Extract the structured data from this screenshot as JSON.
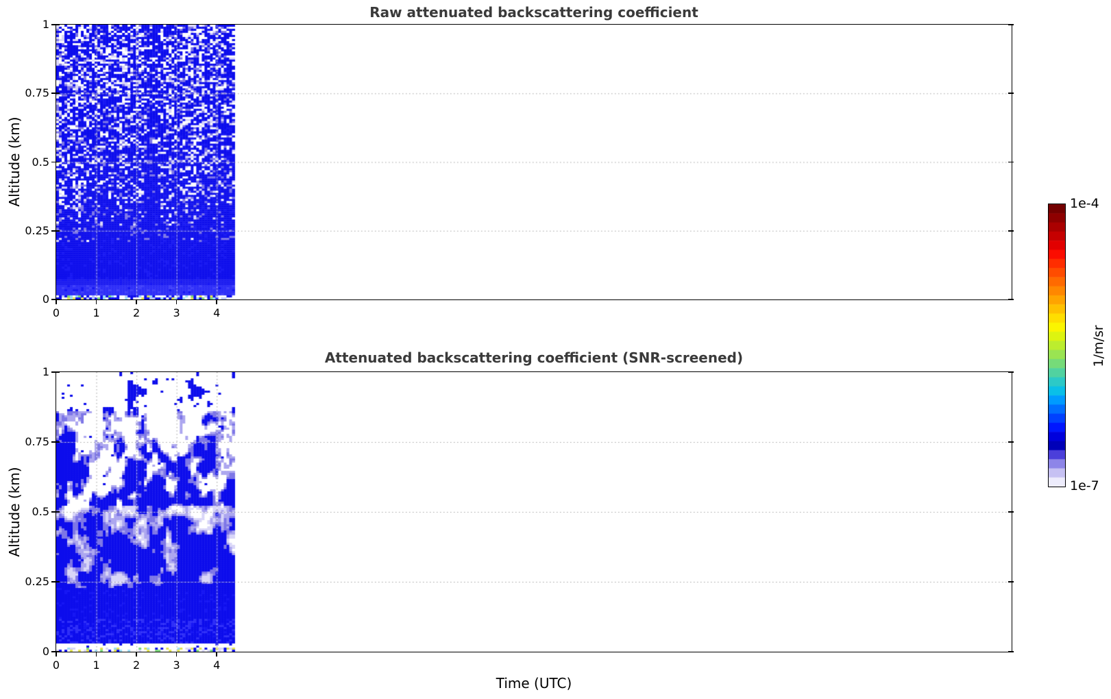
{
  "figure": {
    "xlabel": "Time (UTC)",
    "background": "#ffffff",
    "title_color": "#3a3a3a"
  },
  "colorbar": {
    "top_label": "1e-4",
    "bottom_label": "1e-7",
    "unit": "1/m/sr",
    "scale": "log",
    "vmin": 1e-07,
    "vmax": 0.0001,
    "stops_top_to_bottom": [
      "#730000",
      "#8e0000",
      "#aa0000",
      "#c60000",
      "#e20000",
      "#fb0d00",
      "#ff2d00",
      "#ff4c00",
      "#ff6a00",
      "#ff8700",
      "#ffa400",
      "#ffc100",
      "#ffde00",
      "#fbf500",
      "#ddf410",
      "#bced2e",
      "#9ae452",
      "#76db79",
      "#51d2a0",
      "#2cc9c7",
      "#0abfe8",
      "#009bff",
      "#006eff",
      "#0041ff",
      "#0016ff",
      "#0000dd",
      "#0000b8",
      "#4b3fda",
      "#8d85e8",
      "#c6c1f3",
      "#edecfc"
    ]
  },
  "palette": {
    "blue": "#0c0cec",
    "blue2": "#1616f4",
    "blue_light": "#2e2ef8",
    "blue_band": "#1d1df0",
    "med_blue": "#7d76e6",
    "lavender": "#aca6ef",
    "pale": "#d9d6f8",
    "pale_blue": "#b9c6f9",
    "white": "#ffffff",
    "cyan": "#9adcf8",
    "yellow": "#e2e24e",
    "green": "#7ad878"
  },
  "chart_data": [
    {
      "panel": "top",
      "type": "heatmap",
      "title": "Raw attenuated backscattering coefficient",
      "ylabel": "Altitude (km)",
      "units": "1/m/sr",
      "x_ticks": [
        0,
        1,
        2,
        3,
        4
      ],
      "x_tick_labels": [
        "0",
        "1",
        "2",
        "3",
        "4"
      ],
      "y_ticks": [
        1,
        0.75,
        0.5,
        0.25,
        0
      ],
      "y_tick_labels": [
        "1",
        "0.75",
        "0.5",
        "0.25",
        "0"
      ],
      "xlim_hours": [
        0,
        23.8
      ],
      "ylim_km": [
        0,
        1
      ],
      "data_time_extent_hours": [
        0,
        4.45
      ],
      "grid": true,
      "seed": 7,
      "description": "Raw signal: solid strong blue backscatter below ~0.22 km, bright speckled surface line at 0 km, noise-dominated blue/white speckle above ~0.35 km with denser vertical plume streaks near 2.3-2.6 UTC; no data after ~4.45 UTC.",
      "profile_typical_beta_att": [
        {
          "alt_km": [
            0,
            0.05
          ],
          "value": 3e-06
        },
        {
          "alt_km": [
            0.05,
            0.25
          ],
          "value": 1.5e-06
        },
        {
          "alt_km": [
            0.25,
            0.5
          ],
          "value": 5e-07
        },
        {
          "alt_km": [
            0.5,
            1.0
          ],
          "value": "noise speckle ~1e-7 .. 1e-6"
        }
      ]
    },
    {
      "panel": "bottom",
      "type": "heatmap",
      "title": "Attenuated backscattering coefficient (SNR-screened)",
      "ylabel": "Altitude (km)",
      "units": "1/m/sr",
      "x_ticks": [
        0,
        1,
        2,
        3,
        4
      ],
      "x_tick_labels": [
        "0",
        "1",
        "2",
        "3",
        "4"
      ],
      "y_ticks": [
        1,
        0.75,
        0.5,
        0.25,
        0
      ],
      "y_tick_labels": [
        "1",
        "0.75",
        "0.5",
        "0.25",
        "0"
      ],
      "xlim_hours": [
        0,
        23.8
      ],
      "ylim_km": [
        0,
        1
      ],
      "data_time_extent_hours": [
        0,
        4.45
      ],
      "grid": true,
      "seed": 11,
      "description": "SNR-screened: noise removed (white). Solid blue boundary layer below ~0.3 km, weak lavender signal zone 0.3-0.55 km, convective blue plumes reaching ~0.85 km, isolated blue pixels above; thin white band with yellow/green surface speckles at 0 km.",
      "profile_typical_beta_att": [
        {
          "alt_km": [
            0,
            0.05
          ],
          "value": 3e-06
        },
        {
          "alt_km": [
            0.05,
            0.3
          ],
          "value": 1.5e-06
        },
        {
          "alt_km": [
            0.3,
            0.55
          ],
          "value": 3e-07
        },
        {
          "alt_km": [
            0.55,
            0.85
          ],
          "value": "plumes ~5e-7, screened elsewhere"
        },
        {
          "alt_km": [
            0.85,
            1.0
          ],
          "value": "mostly screened (no data)"
        }
      ]
    }
  ]
}
